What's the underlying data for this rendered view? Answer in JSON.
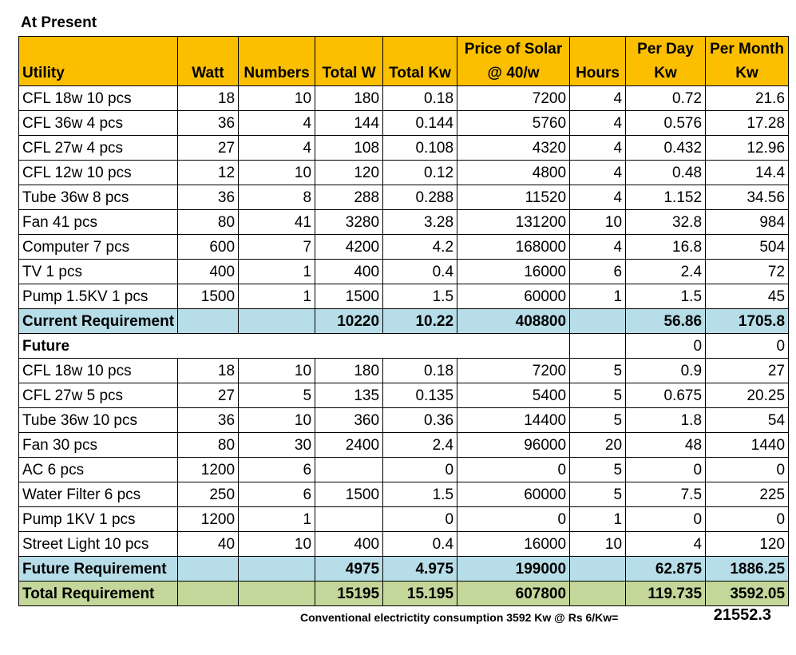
{
  "title": "At Present",
  "headers": {
    "utility": "Utility",
    "watt": "Watt",
    "numbers": "Numbers",
    "total_w": "Total W",
    "total_kw": "Total Kw",
    "price_line1": "Price of Solar",
    "price_line2": "@ 40/w",
    "hours": "Hours",
    "per_day_line1": "Per Day",
    "per_day_line2": "Kw",
    "per_month_line1": "Per Month",
    "per_month_line2": "Kw"
  },
  "present_rows": [
    [
      "CFL 18w 10 pcs",
      "18",
      "10",
      "180",
      "0.18",
      "7200",
      "4",
      "0.72",
      "21.6"
    ],
    [
      "CFL 36w 4 pcs",
      "36",
      "4",
      "144",
      "0.144",
      "5760",
      "4",
      "0.576",
      "17.28"
    ],
    [
      "CFL 27w 4 pcs",
      "27",
      "4",
      "108",
      "0.108",
      "4320",
      "4",
      "0.432",
      "12.96"
    ],
    [
      "CFL 12w 10 pcs",
      "12",
      "10",
      "120",
      "0.12",
      "4800",
      "4",
      "0.48",
      "14.4"
    ],
    [
      "Tube 36w 8 pcs",
      "36",
      "8",
      "288",
      "0.288",
      "11520",
      "4",
      "1.152",
      "34.56"
    ],
    [
      "Fan 41 pcs",
      "80",
      "41",
      "3280",
      "3.28",
      "131200",
      "10",
      "32.8",
      "984"
    ],
    [
      "Computer 7 pcs",
      "600",
      "7",
      "4200",
      "4.2",
      "168000",
      "4",
      "16.8",
      "504"
    ],
    [
      "TV 1 pcs",
      "400",
      "1",
      "400",
      "0.4",
      "16000",
      "6",
      "2.4",
      "72"
    ],
    [
      "Pump 1.5KV 1 pcs",
      "1500",
      "1",
      "1500",
      "1.5",
      "60000",
      "1",
      "1.5",
      "45"
    ]
  ],
  "current": {
    "label": "Current Requirement",
    "total_w": "10220",
    "total_kw": "10.22",
    "price": "408800",
    "per_day": "56.86",
    "per_month": "1705.8"
  },
  "future_section": {
    "label": "Future",
    "per_day": "0",
    "per_month": "0"
  },
  "future_rows": [
    [
      "CFL 18w 10 pcs",
      "18",
      "10",
      "180",
      "0.18",
      "7200",
      "5",
      "0.9",
      "27"
    ],
    [
      "CFL 27w 5 pcs",
      "27",
      "5",
      "135",
      "0.135",
      "5400",
      "5",
      "0.675",
      "20.25"
    ],
    [
      "Tube 36w 10 pcs",
      "36",
      "10",
      "360",
      "0.36",
      "14400",
      "5",
      "1.8",
      "54"
    ],
    [
      "Fan 30 pcs",
      "80",
      "30",
      "2400",
      "2.4",
      "96000",
      "20",
      "48",
      "1440"
    ],
    [
      "AC 6 pcs",
      "1200",
      "6",
      "",
      "0",
      "0",
      "5",
      "0",
      "0"
    ],
    [
      "Water Filter 6 pcs",
      "250",
      "6",
      "1500",
      "1.5",
      "60000",
      "5",
      "7.5",
      "225"
    ],
    [
      "Pump 1KV 1 pcs",
      "1200",
      "1",
      "",
      "0",
      "0",
      "1",
      "0",
      "0"
    ],
    [
      "Street Light 10 pcs",
      "40",
      "10",
      "400",
      "0.4",
      "16000",
      "10",
      "4",
      "120"
    ]
  ],
  "future_req": {
    "label": "Future Requirement",
    "total_w": "4975",
    "total_kw": "4.975",
    "price": "199000",
    "per_day": "62.875",
    "per_month": "1886.25"
  },
  "total_req": {
    "label": "Total Requirement",
    "total_w": "15195",
    "total_kw": "15.195",
    "price": "607800",
    "per_day": "119.735",
    "per_month": "3592.05"
  },
  "footer": {
    "text": "Conventional electrictity consumption 3592 Kw @ Rs 6/Kw=",
    "value": "21552.3"
  },
  "colors": {
    "header_bg": "#fbbf00",
    "subtotal_bg": "#b7dde8",
    "total_bg": "#c4d79b"
  }
}
